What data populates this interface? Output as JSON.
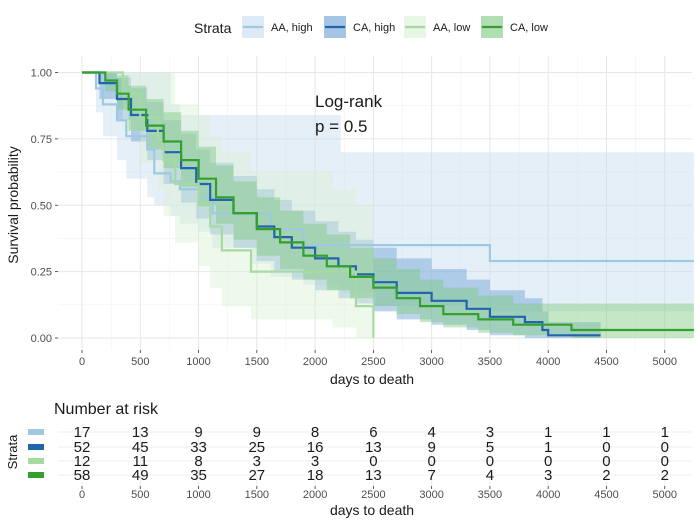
{
  "chart_data": [
    {
      "type": "line",
      "subtype": "kaplan-meier",
      "xlabel": "days to death",
      "ylabel": "Survival probability",
      "xlim": [
        -200,
        5250
      ],
      "ylim": [
        0,
        1.0
      ],
      "xticks": [
        0,
        500,
        1000,
        1500,
        2000,
        2500,
        3000,
        3500,
        4000,
        4500,
        5000
      ],
      "yticks": [
        "0.00",
        "0.25",
        "0.50",
        "0.75",
        "1.00"
      ],
      "grid": true,
      "legend": {
        "title": "Strata",
        "position": "top"
      },
      "annotation": {
        "line1": "Log-rank",
        "line2": "p = 0.5"
      },
      "series": [
        {
          "name": "AA, high",
          "color": "#9ecae1",
          "fill": "#c6dbef",
          "x": [
            0,
            120,
            180,
            300,
            380,
            560,
            620,
            760,
            840,
            1000,
            1120,
            1460,
            1620,
            1900,
            2000,
            2220,
            2520,
            3500,
            5250
          ],
          "y": [
            1.0,
            0.94,
            0.88,
            0.82,
            0.76,
            0.71,
            0.62,
            0.59,
            0.56,
            0.53,
            0.47,
            0.47,
            0.41,
            0.35,
            0.35,
            0.35,
            0.35,
            0.29,
            0.29
          ],
          "upper": [
            1.0,
            1.0,
            1.0,
            1.0,
            1.0,
            1.0,
            1.0,
            0.88,
            0.84,
            0.84,
            0.84,
            0.84,
            0.84,
            0.84,
            0.84,
            0.7,
            0.7,
            0.7,
            0.72
          ],
          "lower": [
            1.0,
            0.85,
            0.76,
            0.67,
            0.6,
            0.53,
            0.5,
            0.46,
            0.43,
            0.4,
            0.34,
            0.28,
            0.23,
            0.2,
            0.2,
            0.17,
            0.12,
            0.1,
            0.1
          ]
        },
        {
          "name": "CA, high",
          "color": "#2166ac",
          "fill": "#6a9fd2",
          "x": [
            0,
            150,
            300,
            420,
            560,
            700,
            850,
            980,
            1100,
            1300,
            1500,
            1650,
            1800,
            2000,
            2200,
            2350,
            2500,
            2700,
            3000,
            3300,
            3500,
            3800,
            3950,
            4000,
            4450
          ],
          "y": [
            1.0,
            0.96,
            0.9,
            0.84,
            0.78,
            0.7,
            0.64,
            0.58,
            0.52,
            0.47,
            0.42,
            0.38,
            0.34,
            0.3,
            0.27,
            0.24,
            0.21,
            0.17,
            0.14,
            0.11,
            0.08,
            0.06,
            0.03,
            0.01,
            0.01
          ],
          "upper": [
            1.0,
            1.0,
            0.98,
            0.94,
            0.89,
            0.82,
            0.77,
            0.71,
            0.66,
            0.61,
            0.56,
            0.52,
            0.48,
            0.44,
            0.4,
            0.37,
            0.34,
            0.3,
            0.26,
            0.22,
            0.18,
            0.15,
            0.1,
            0.06,
            0.06
          ],
          "lower": [
            1.0,
            0.9,
            0.82,
            0.74,
            0.67,
            0.58,
            0.51,
            0.45,
            0.39,
            0.34,
            0.29,
            0.25,
            0.22,
            0.18,
            0.15,
            0.13,
            0.1,
            0.07,
            0.05,
            0.03,
            0.01,
            0.0,
            0.0,
            0.0,
            0.0
          ]
        },
        {
          "name": "AA, low",
          "color": "#a6dba0",
          "fill": "#d9f0d3",
          "x": [
            0,
            350,
            500,
            650,
            700,
            800,
            1000,
            1100,
            1200,
            1450,
            2150,
            2350,
            2500
          ],
          "y": [
            1.0,
            0.92,
            0.83,
            0.75,
            0.67,
            0.58,
            0.5,
            0.42,
            0.33,
            0.25,
            0.25,
            0.12,
            0.0
          ],
          "upper": [
            1.0,
            1.0,
            1.0,
            1.0,
            1.0,
            0.88,
            0.84,
            0.76,
            0.7,
            0.63,
            0.56,
            0.5,
            0.5
          ],
          "lower": [
            1.0,
            0.78,
            0.66,
            0.56,
            0.46,
            0.36,
            0.27,
            0.19,
            0.12,
            0.07,
            0.04,
            0.0,
            0.0
          ]
        },
        {
          "name": "CA, low",
          "color": "#33a02c",
          "fill": "#7fc97f",
          "x": [
            0,
            200,
            300,
            400,
            550,
            700,
            850,
            1000,
            1150,
            1300,
            1500,
            1700,
            1900,
            2100,
            2300,
            2500,
            2700,
            2900,
            3100,
            3400,
            3700,
            4200,
            5250
          ],
          "y": [
            1.0,
            0.97,
            0.92,
            0.86,
            0.8,
            0.74,
            0.67,
            0.6,
            0.53,
            0.47,
            0.41,
            0.36,
            0.31,
            0.27,
            0.23,
            0.19,
            0.15,
            0.12,
            0.09,
            0.07,
            0.05,
            0.03,
            0.03
          ],
          "upper": [
            1.0,
            1.0,
            0.99,
            0.95,
            0.9,
            0.85,
            0.78,
            0.72,
            0.65,
            0.59,
            0.53,
            0.48,
            0.43,
            0.39,
            0.34,
            0.3,
            0.26,
            0.22,
            0.19,
            0.16,
            0.13,
            0.13,
            0.14
          ],
          "lower": [
            1.0,
            0.93,
            0.86,
            0.78,
            0.71,
            0.64,
            0.57,
            0.5,
            0.43,
            0.37,
            0.31,
            0.26,
            0.22,
            0.18,
            0.15,
            0.12,
            0.09,
            0.06,
            0.04,
            0.02,
            0.01,
            0.0,
            0.0
          ]
        }
      ]
    },
    {
      "type": "table",
      "title": "Number at risk",
      "ylabel": "Strata",
      "xlabel": "days to death",
      "xticks": [
        0,
        500,
        1000,
        1500,
        2000,
        2500,
        3000,
        3500,
        4000,
        4500,
        5000
      ],
      "rows": [
        {
          "name": "AA, high",
          "color": "#9ecae1",
          "values": [
            17,
            13,
            9,
            9,
            8,
            6,
            4,
            3,
            1,
            1,
            1
          ]
        },
        {
          "name": "CA, high",
          "color": "#2166ac",
          "values": [
            52,
            45,
            33,
            25,
            16,
            13,
            9,
            5,
            1,
            0,
            0
          ]
        },
        {
          "name": "AA, low",
          "color": "#a6dba0",
          "values": [
            12,
            11,
            8,
            3,
            3,
            0,
            0,
            0,
            0,
            0,
            0
          ]
        },
        {
          "name": "CA, low",
          "color": "#33a02c",
          "values": [
            58,
            49,
            35,
            27,
            18,
            13,
            7,
            4,
            3,
            2,
            2
          ]
        }
      ]
    }
  ]
}
